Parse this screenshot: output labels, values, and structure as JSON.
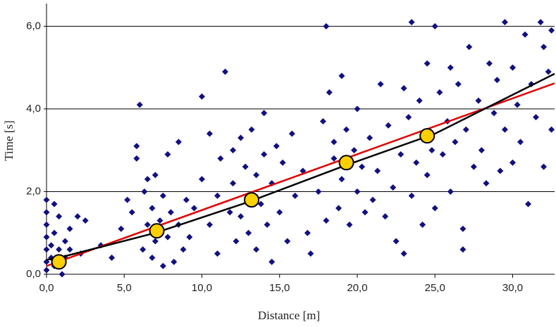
{
  "chart_data": {
    "type": "scatter",
    "xlabel": "Distance [m]",
    "ylabel": "Time [s]",
    "xlim": [
      0,
      32.7
    ],
    "ylim": [
      0,
      6.55
    ],
    "xticks": [
      {
        "value": 0,
        "label": "0,0"
      },
      {
        "value": 5,
        "label": "5,0"
      },
      {
        "value": 10,
        "label": "10,0"
      },
      {
        "value": 15,
        "label": "15,0"
      },
      {
        "value": 20,
        "label": "20,0"
      },
      {
        "value": 25,
        "label": "25,0"
      },
      {
        "value": 30,
        "label": "30,0"
      }
    ],
    "yticks": [
      {
        "value": 0,
        "label": "0,0"
      },
      {
        "value": 2,
        "label": "2,0"
      },
      {
        "value": 4,
        "label": "4,0"
      },
      {
        "value": 6,
        "label": "6,0"
      }
    ],
    "grid": true,
    "series": [
      {
        "color": "#101080",
        "marker": "diamond",
        "x": [
          0,
          0,
          0,
          0,
          0,
          0,
          0,
          0.3,
          0.3,
          0.5,
          0.5,
          0.5,
          0.8,
          0.8,
          1.0,
          1.2,
          1.2,
          1.5,
          1.5,
          2.0,
          2.2,
          2.5,
          3.5,
          4.2,
          4.8,
          5.2,
          5.5,
          5.8,
          5.8,
          6.0,
          6.2,
          6.3,
          6.5,
          6.5,
          6.8,
          6.8,
          7.0,
          7.0,
          7.3,
          7.5,
          7.5,
          7.8,
          7.8,
          8.0,
          8.2,
          8.5,
          8.5,
          8.8,
          9.0,
          9.2,
          9.5,
          10.0,
          10.0,
          10.5,
          10.5,
          11.0,
          11.0,
          11.2,
          11.5,
          11.8,
          12.0,
          12.0,
          12.2,
          12.5,
          12.5,
          12.8,
          13.0,
          13.2,
          13.5,
          13.5,
          13.8,
          14.0,
          14.0,
          14.2,
          14.5,
          14.5,
          14.8,
          15.0,
          15.2,
          15.5,
          15.8,
          16.0,
          16.5,
          16.8,
          17.0,
          17.5,
          17.8,
          18.0,
          18.0,
          18.2,
          18.5,
          18.5,
          18.8,
          19.0,
          19.0,
          19.3,
          19.5,
          19.8,
          20.0,
          20.0,
          20.3,
          20.5,
          20.8,
          21.0,
          21.3,
          21.5,
          21.8,
          22.0,
          22.3,
          22.5,
          22.8,
          23.0,
          23.0,
          23.3,
          23.5,
          23.5,
          23.8,
          24.0,
          24.2,
          24.5,
          24.5,
          24.8,
          25.0,
          25.0,
          25.3,
          25.5,
          25.8,
          26.0,
          26.0,
          26.3,
          26.5,
          26.8,
          26.8,
          27.0,
          27.2,
          27.5,
          27.8,
          28.0,
          28.3,
          28.5,
          28.8,
          29.0,
          29.2,
          29.5,
          29.5,
          30.0,
          30.0,
          30.3,
          30.5,
          30.8,
          31.0,
          31.2,
          31.5,
          31.8,
          32.0,
          32.0,
          32.3,
          32.5,
          32.5
        ],
        "values": [
          1.8,
          1.5,
          1.2,
          0.9,
          0.6,
          0.3,
          0.1,
          0.7,
          0.4,
          1.7,
          1.0,
          0.2,
          1.4,
          0.6,
          0.0,
          0.8,
          0.4,
          0.6,
          1.1,
          1.4,
          0.5,
          1.3,
          0.7,
          0.4,
          1.1,
          1.8,
          1.5,
          2.8,
          3.1,
          4.1,
          0.6,
          2.0,
          1.2,
          2.3,
          0.4,
          1.6,
          2.4,
          0.8,
          1.3,
          0.2,
          1.9,
          2.9,
          0.9,
          1.5,
          0.3,
          1.2,
          3.2,
          0.6,
          1.8,
          0.9,
          1.6,
          2.3,
          4.3,
          3.4,
          1.2,
          1.9,
          0.5,
          2.8,
          4.9,
          1.5,
          3.0,
          2.2,
          0.8,
          3.3,
          1.4,
          2.6,
          1.0,
          3.5,
          2.4,
          0.6,
          1.7,
          3.9,
          2.9,
          1.2,
          2.2,
          0.3,
          3.1,
          1.5,
          2.7,
          0.8,
          3.4,
          1.9,
          2.5,
          1.0,
          0.5,
          2.0,
          3.7,
          6.0,
          1.3,
          4.4,
          2.8,
          3.2,
          1.6,
          4.8,
          2.3,
          3.5,
          1.2,
          3.0,
          2.0,
          4.0,
          2.6,
          1.5,
          3.3,
          1.8,
          2.5,
          4.6,
          1.4,
          3.6,
          2.1,
          0.8,
          2.9,
          4.5,
          0.5,
          3.8,
          6.1,
          1.9,
          2.7,
          4.2,
          1.2,
          5.1,
          2.4,
          3.0,
          6.0,
          1.6,
          4.4,
          2.9,
          3.7,
          5.0,
          2.0,
          3.2,
          4.6,
          1.1,
          0.6,
          3.5,
          5.5,
          2.6,
          4.2,
          3.0,
          2.2,
          5.1,
          3.9,
          4.7,
          2.5,
          6.1,
          3.5,
          5.0,
          2.7,
          4.1,
          3.2,
          5.8,
          1.7,
          4.6,
          3.8,
          6.1,
          5.5,
          2.6,
          4.9,
          3.5,
          5.9
        ]
      },
      {
        "color": "#ffd000",
        "marker": "circle",
        "x": [
          0.8,
          7.1,
          13.2,
          19.3,
          24.5
        ],
        "values": [
          0.3,
          1.05,
          1.8,
          2.7,
          3.35
        ]
      },
      {
        "color": "#000000",
        "marker": "line",
        "x": [
          0,
          0.8,
          7,
          13,
          19,
          25,
          32.7
        ],
        "values": [
          0.35,
          0.4,
          1.0,
          1.75,
          2.6,
          3.4,
          4.85
        ]
      },
      {
        "color": "#e00000",
        "marker": "line",
        "x": [
          0,
          32.7
        ],
        "values": [
          0.2,
          4.62
        ]
      }
    ]
  }
}
